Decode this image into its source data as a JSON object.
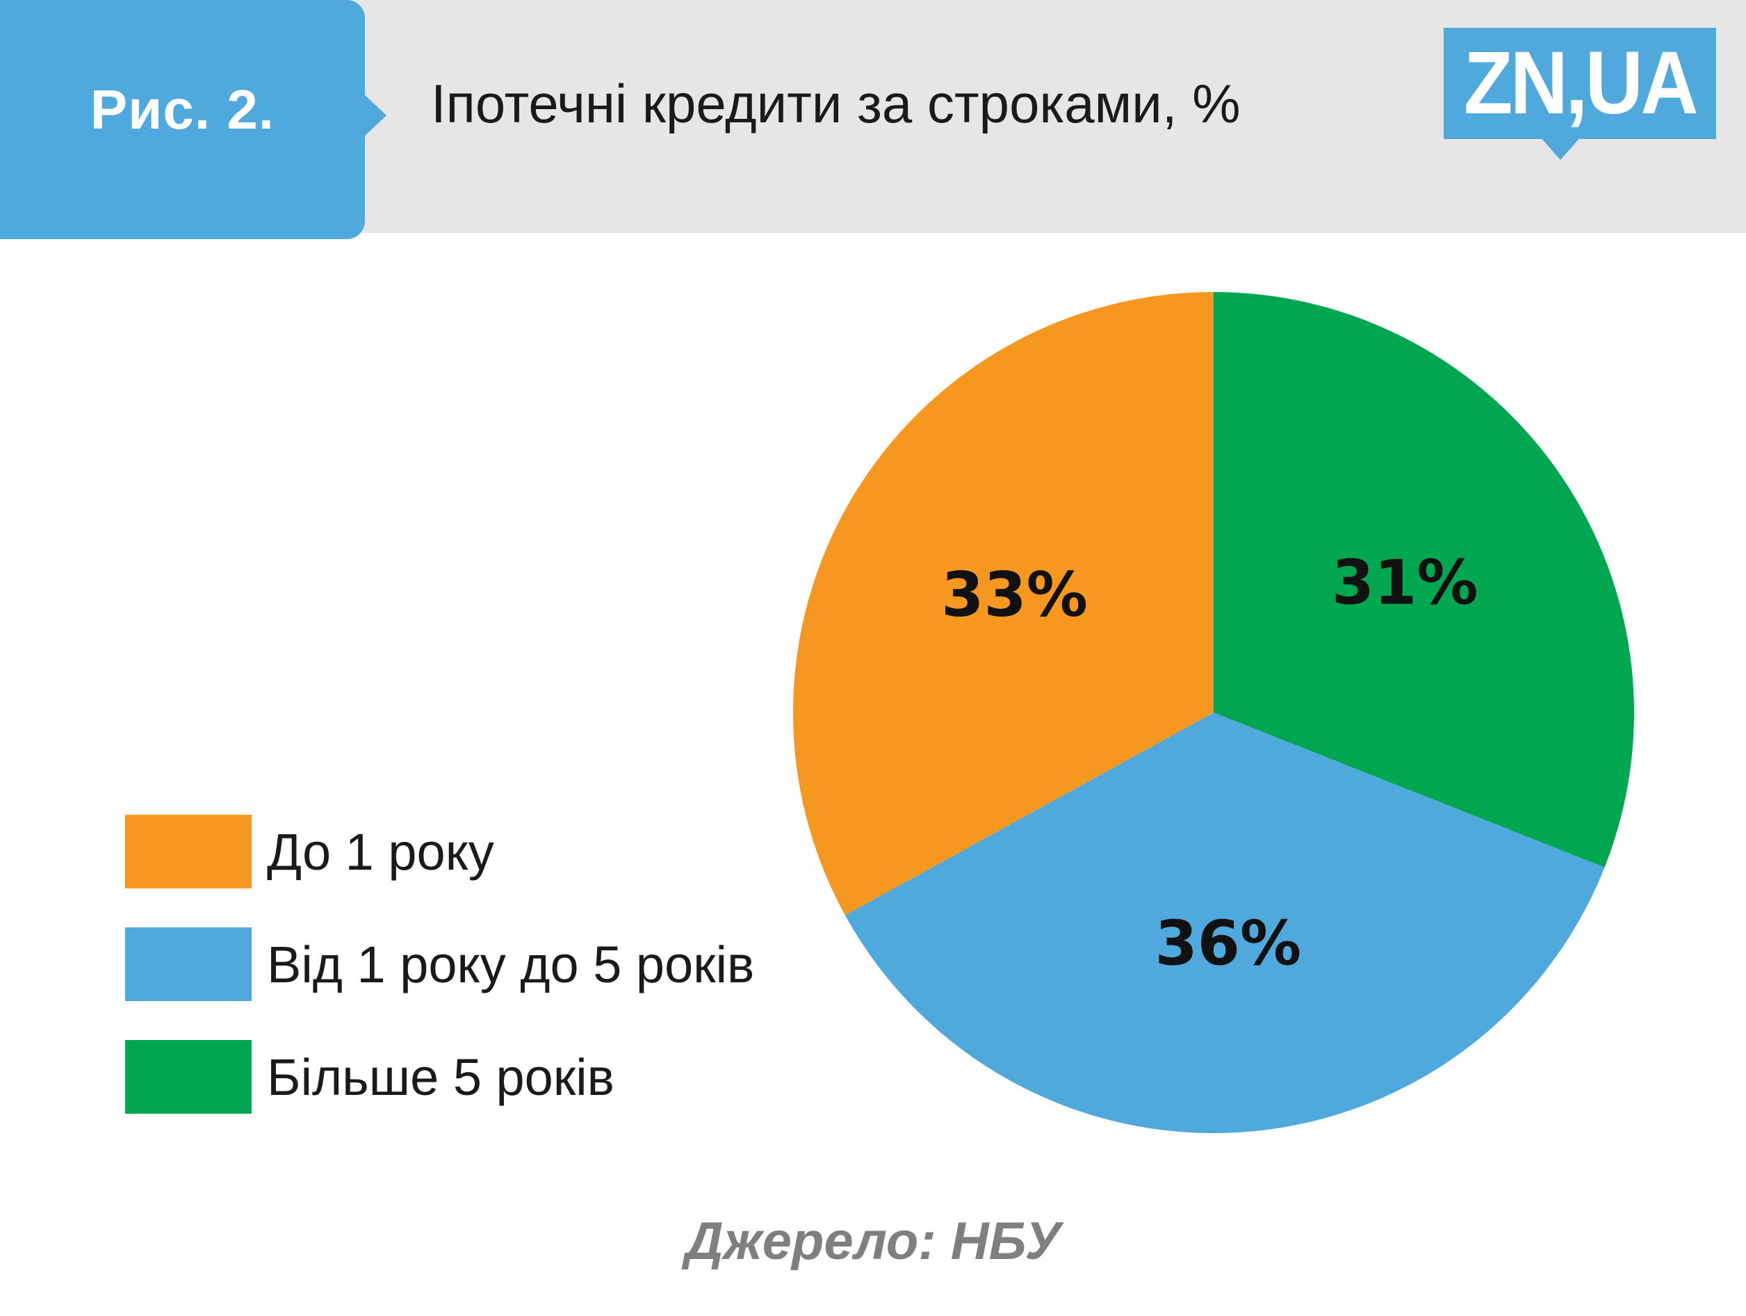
{
  "header": {
    "figure_label": "Рис. 2.",
    "title": "Іпотечні кредити за строками, %",
    "logo": "ZN,UA"
  },
  "colors": {
    "orange": "#f6971f",
    "blue": "#4fa9dd",
    "green": "#00a650",
    "header_bg": "#e6e6e6"
  },
  "chart_data": {
    "type": "pie",
    "title": "Іпотечні кредити за строками, %",
    "slices": [
      {
        "label": "До 1 року",
        "value": 33,
        "display": "33%",
        "color": "#f6971f"
      },
      {
        "label": "Від 1 року до 5 років",
        "value": 36,
        "display": "36%",
        "color": "#4fa9dd"
      },
      {
        "label": "Більше 5 років",
        "value": 31,
        "display": "31%",
        "color": "#00a650"
      }
    ],
    "legend_position": "left"
  },
  "legend": [
    {
      "label": "До 1 року",
      "color": "#f6971f"
    },
    {
      "label": "Від 1 року до 5 років",
      "color": "#4fa9dd"
    },
    {
      "label": "Більше 5 років",
      "color": "#00a650"
    }
  ],
  "source": "Джерело: НБУ"
}
